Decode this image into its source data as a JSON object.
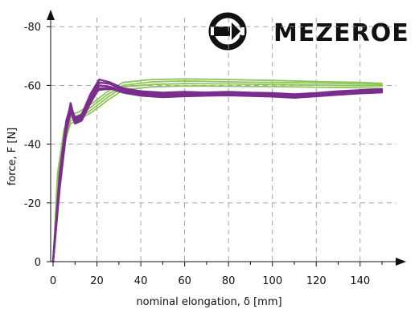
{
  "brand": {
    "name": "MEZEROE",
    "color": "#111111"
  },
  "chart_data": {
    "type": "line",
    "title": "",
    "xlabel": "nominal elongation, δ [mm]",
    "ylabel": "force, F [N]",
    "xlim": [
      0,
      150
    ],
    "ylim": [
      0,
      -83
    ],
    "x_ticks": [
      0,
      20,
      40,
      60,
      80,
      100,
      120,
      140
    ],
    "y_ticks": [
      0,
      -20,
      -40,
      -60,
      -80
    ],
    "x_tick_labels": [
      "0",
      "20",
      "40",
      "60",
      "80",
      "100",
      "120",
      "140"
    ],
    "y_tick_labels": [
      "0",
      "-20",
      "-40",
      "-60",
      "-80"
    ],
    "grid": true,
    "legend": "none",
    "series": [
      {
        "group": "green",
        "color": "#8fc45a",
        "x": [
          0,
          2,
          5,
          8,
          12,
          18,
          25,
          32,
          45,
          60,
          80,
          100,
          120,
          140,
          150
        ],
        "y": [
          0,
          -30,
          -45,
          -50,
          -51,
          -54,
          -58,
          -61,
          -62,
          -62.2,
          -62,
          -61.7,
          -61.3,
          -61,
          -60.7
        ]
      },
      {
        "group": "green",
        "color": "#8fc45a",
        "x": [
          0,
          2,
          5,
          8,
          12,
          18,
          25,
          32,
          45,
          60,
          80,
          100,
          120,
          140,
          150
        ],
        "y": [
          0,
          -28,
          -44,
          -49,
          -50,
          -53,
          -57,
          -60,
          -61.2,
          -61.5,
          -61.2,
          -61,
          -60.8,
          -60.5,
          -60.3
        ]
      },
      {
        "group": "green",
        "color": "#8fc45a",
        "x": [
          0,
          2,
          5,
          8,
          12,
          18,
          25,
          32,
          45,
          60,
          80,
          100,
          120,
          140,
          150
        ],
        "y": [
          0,
          -25,
          -42,
          -48,
          -49,
          -52,
          -56,
          -59.5,
          -60.3,
          -60.6,
          -60.5,
          -60.3,
          -60.1,
          -59.9,
          -59.8
        ]
      },
      {
        "group": "green",
        "color": "#8fc45a",
        "x": [
          0,
          2,
          5,
          8,
          12,
          18,
          25,
          32,
          45,
          60,
          80,
          100,
          120,
          140,
          150
        ],
        "y": [
          0,
          -22,
          -40,
          -47,
          -48.5,
          -51,
          -55,
          -58.5,
          -59.5,
          -59.8,
          -59.7,
          -59.6,
          -59.4,
          -59.2,
          -59
        ]
      },
      {
        "group": "purple",
        "color": "#7b2d8e",
        "x": [
          0,
          3,
          6,
          8,
          10,
          13,
          17,
          21,
          26,
          32,
          40,
          50,
          60,
          70,
          80,
          90,
          100,
          110,
          120,
          130,
          140,
          150
        ],
        "y": [
          0,
          -30,
          -48,
          -53,
          -49,
          -50,
          -57,
          -62,
          -61,
          -59,
          -58,
          -57.5,
          -57.8,
          -57.5,
          -57.7,
          -57.3,
          -57.2,
          -56.8,
          -57.2,
          -57.8,
          -58.3,
          -58.5
        ]
      },
      {
        "group": "purple",
        "color": "#7b2d8e",
        "x": [
          0,
          3,
          6,
          8,
          10,
          13,
          17,
          21,
          26,
          32,
          40,
          50,
          60,
          70,
          80,
          90,
          100,
          110,
          120,
          130,
          140,
          150
        ],
        "y": [
          0,
          -28,
          -46,
          -54,
          -48,
          -49,
          -56,
          -61,
          -60.5,
          -58.5,
          -57.5,
          -57,
          -57.2,
          -57.3,
          -57.5,
          -57.1,
          -57,
          -56.5,
          -57,
          -57.5,
          -58,
          -58.2
        ]
      },
      {
        "group": "purple",
        "color": "#7b2d8e",
        "x": [
          0,
          3,
          6,
          8,
          10,
          13,
          17,
          21,
          26,
          32,
          40,
          50,
          60,
          70,
          80,
          90,
          100,
          110,
          120,
          130,
          140,
          150
        ],
        "y": [
          0,
          -26,
          -45,
          -52,
          -47.5,
          -48.5,
          -55,
          -60,
          -59.5,
          -58,
          -57,
          -56.5,
          -56.8,
          -56.9,
          -57,
          -56.8,
          -56.6,
          -56.2,
          -56.7,
          -57.2,
          -57.6,
          -57.9
        ]
      },
      {
        "group": "purple",
        "color": "#7b2d8e",
        "x": [
          0,
          3,
          6,
          8,
          10,
          13,
          17,
          21,
          26,
          32,
          40,
          50,
          60,
          70,
          80,
          90,
          100,
          110,
          120,
          130,
          140,
          150
        ],
        "y": [
          0,
          -25,
          -44,
          -51,
          -47,
          -48,
          -54,
          -59,
          -59,
          -57.5,
          -56.5,
          -56,
          -56.3,
          -56.5,
          -56.6,
          -56.4,
          -56.2,
          -55.8,
          -56.3,
          -56.8,
          -57.3,
          -57.6
        ]
      },
      {
        "group": "purple",
        "color": "#7b2d8e",
        "x": [
          0,
          3,
          6,
          8,
          10,
          13,
          17,
          21,
          26,
          32,
          40,
          50,
          60,
          70,
          80,
          90,
          100,
          110,
          120,
          130,
          140,
          150
        ],
        "y": [
          0,
          -27,
          -46,
          -53,
          -48.5,
          -49.5,
          -56,
          -58.5,
          -58.8,
          -58.2,
          -57.6,
          -57.4,
          -57.7,
          -57.6,
          -57.8,
          -57.5,
          -57.4,
          -57,
          -57.4,
          -58,
          -58.4,
          -58.7
        ]
      }
    ]
  }
}
